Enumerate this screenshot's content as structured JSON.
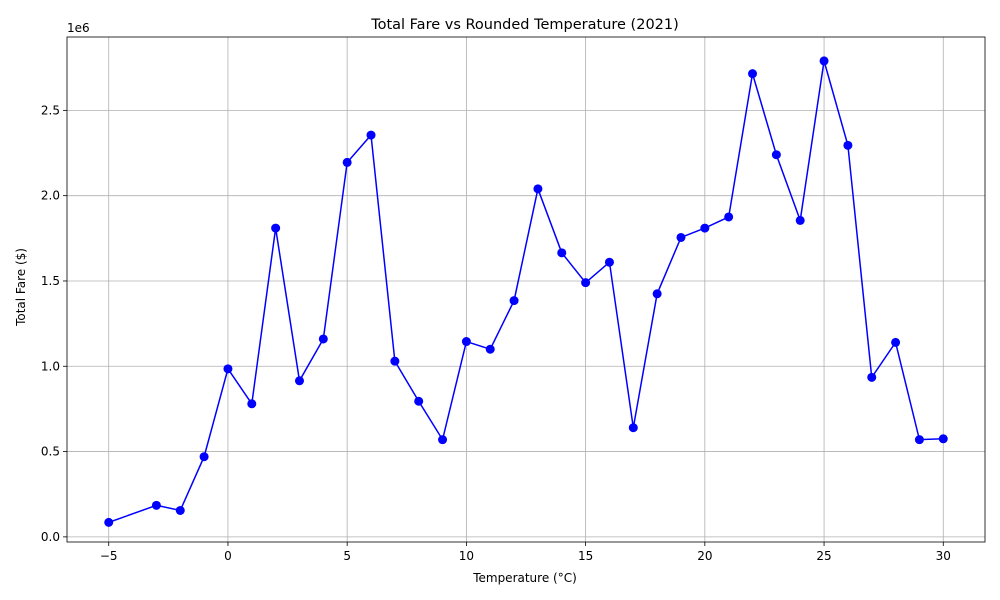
{
  "chart_data": {
    "type": "line",
    "title": "Total Fare vs Rounded Temperature (2021)",
    "xlabel": "Temperature (°C)",
    "ylabel": "Total Fare ($)",
    "y_offset_label": "1e6",
    "y_scale": 1000000,
    "xlim": [
      -6.75,
      31.75
    ],
    "ylim": [
      -30000,
      2930000
    ],
    "x_ticks": [
      -5,
      0,
      5,
      10,
      15,
      20,
      25,
      30
    ],
    "x_tick_labels": [
      "−5",
      "0",
      "5",
      "10",
      "15",
      "20",
      "25",
      "30"
    ],
    "y_ticks": [
      0,
      500000,
      1000000,
      1500000,
      2000000,
      2500000
    ],
    "y_tick_labels": [
      "0.0",
      "0.5",
      "1.0",
      "1.5",
      "2.0",
      "2.5"
    ],
    "grid": true,
    "marker": "circle",
    "series": [
      {
        "color": "#0000ff",
        "x": [
          -5,
          -3,
          -2,
          -1,
          0,
          1,
          2,
          3,
          4,
          5,
          6,
          7,
          8,
          9,
          10,
          11,
          12,
          13,
          14,
          15,
          16,
          17,
          18,
          19,
          20,
          21,
          22,
          23,
          24,
          25,
          26,
          27,
          28,
          29,
          30
        ],
        "y": [
          85000,
          185000,
          155000,
          470000,
          985000,
          780000,
          1810000,
          915000,
          1160000,
          2195000,
          2355000,
          1030000,
          795000,
          570000,
          1145000,
          1100000,
          1385000,
          2040000,
          1665000,
          1490000,
          1610000,
          640000,
          1425000,
          1755000,
          1810000,
          1875000,
          2715000,
          2240000,
          1855000,
          2790000,
          2295000,
          935000,
          1140000,
          570000,
          575000
        ]
      }
    ]
  }
}
